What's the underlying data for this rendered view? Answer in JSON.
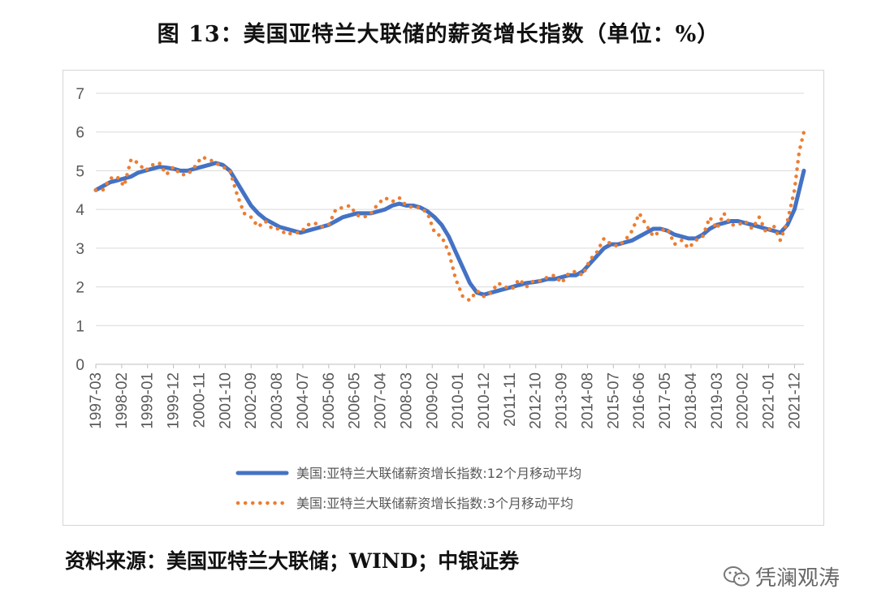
{
  "title": "图 13：美国亚特兰大联储的薪资增长指数（单位：%）",
  "source": "资料来源：美国亚特兰大联储；WIND；中银证券",
  "watermark": {
    "text": "凭澜观涛",
    "icon": "wechat-icon"
  },
  "chart_data": {
    "type": "line",
    "x_tick_labels": [
      "1997-03",
      "1998-02",
      "1999-01",
      "1999-12",
      "2000-11",
      "2001-10",
      "2002-09",
      "2003-08",
      "2004-07",
      "2005-06",
      "2006-05",
      "2007-04",
      "2008-03",
      "2009-02",
      "2010-01",
      "2010-12",
      "2011-11",
      "2012-10",
      "2013-09",
      "2014-08",
      "2015-07",
      "2016-06",
      "2017-05",
      "2018-04",
      "2019-03",
      "2020-02",
      "2021-01",
      "2021-12"
    ],
    "x_start": "1997-03",
    "x_end": "2022-04",
    "ylim": [
      0,
      7
    ],
    "y_ticks": [
      0,
      1,
      2,
      3,
      4,
      5,
      6,
      7
    ],
    "grid": "horizontal",
    "legend_position": "bottom",
    "series": [
      {
        "name": "美国:亚特兰大联储薪资增长指数:12个月移动平均",
        "style": "solid",
        "color": "#4472C4",
        "points": [
          [
            "1997-03",
            4.5
          ],
          [
            "1997-06",
            4.6
          ],
          [
            "1997-09",
            4.7
          ],
          [
            "1997-12",
            4.75
          ],
          [
            "1998-03",
            4.8
          ],
          [
            "1998-06",
            4.85
          ],
          [
            "1998-09",
            4.95
          ],
          [
            "1998-12",
            5.0
          ],
          [
            "1999-03",
            5.05
          ],
          [
            "1999-06",
            5.1
          ],
          [
            "1999-09",
            5.08
          ],
          [
            "1999-12",
            5.05
          ],
          [
            "2000-03",
            5.0
          ],
          [
            "2000-06",
            5.0
          ],
          [
            "2000-09",
            5.05
          ],
          [
            "2000-12",
            5.1
          ],
          [
            "2001-03",
            5.15
          ],
          [
            "2001-06",
            5.2
          ],
          [
            "2001-09",
            5.15
          ],
          [
            "2001-12",
            5.0
          ],
          [
            "2002-03",
            4.7
          ],
          [
            "2002-06",
            4.4
          ],
          [
            "2002-09",
            4.1
          ],
          [
            "2002-12",
            3.9
          ],
          [
            "2003-03",
            3.75
          ],
          [
            "2003-06",
            3.65
          ],
          [
            "2003-09",
            3.55
          ],
          [
            "2003-12",
            3.5
          ],
          [
            "2004-03",
            3.45
          ],
          [
            "2004-06",
            3.4
          ],
          [
            "2004-09",
            3.45
          ],
          [
            "2004-12",
            3.5
          ],
          [
            "2005-03",
            3.55
          ],
          [
            "2005-06",
            3.6
          ],
          [
            "2005-09",
            3.7
          ],
          [
            "2005-12",
            3.8
          ],
          [
            "2006-03",
            3.85
          ],
          [
            "2006-06",
            3.9
          ],
          [
            "2006-09",
            3.9
          ],
          [
            "2006-12",
            3.9
          ],
          [
            "2007-03",
            3.95
          ],
          [
            "2007-06",
            4.0
          ],
          [
            "2007-09",
            4.1
          ],
          [
            "2007-12",
            4.15
          ],
          [
            "2008-03",
            4.1
          ],
          [
            "2008-06",
            4.1
          ],
          [
            "2008-09",
            4.05
          ],
          [
            "2008-12",
            3.95
          ],
          [
            "2009-03",
            3.8
          ],
          [
            "2009-06",
            3.6
          ],
          [
            "2009-09",
            3.3
          ],
          [
            "2009-12",
            2.9
          ],
          [
            "2010-03",
            2.5
          ],
          [
            "2010-06",
            2.1
          ],
          [
            "2010-09",
            1.85
          ],
          [
            "2010-12",
            1.8
          ],
          [
            "2011-03",
            1.85
          ],
          [
            "2011-06",
            1.9
          ],
          [
            "2011-09",
            1.95
          ],
          [
            "2011-12",
            2.0
          ],
          [
            "2012-03",
            2.05
          ],
          [
            "2012-06",
            2.1
          ],
          [
            "2012-09",
            2.12
          ],
          [
            "2012-12",
            2.15
          ],
          [
            "2013-03",
            2.2
          ],
          [
            "2013-06",
            2.2
          ],
          [
            "2013-09",
            2.25
          ],
          [
            "2013-12",
            2.3
          ],
          [
            "2014-03",
            2.3
          ],
          [
            "2014-06",
            2.4
          ],
          [
            "2014-09",
            2.6
          ],
          [
            "2014-12",
            2.8
          ],
          [
            "2015-03",
            3.0
          ],
          [
            "2015-06",
            3.1
          ],
          [
            "2015-09",
            3.1
          ],
          [
            "2015-12",
            3.15
          ],
          [
            "2016-03",
            3.2
          ],
          [
            "2016-06",
            3.3
          ],
          [
            "2016-09",
            3.4
          ],
          [
            "2016-12",
            3.5
          ],
          [
            "2017-03",
            3.5
          ],
          [
            "2017-06",
            3.45
          ],
          [
            "2017-09",
            3.35
          ],
          [
            "2017-12",
            3.3
          ],
          [
            "2018-03",
            3.25
          ],
          [
            "2018-06",
            3.25
          ],
          [
            "2018-09",
            3.35
          ],
          [
            "2018-12",
            3.5
          ],
          [
            "2019-03",
            3.6
          ],
          [
            "2019-06",
            3.65
          ],
          [
            "2019-09",
            3.7
          ],
          [
            "2019-12",
            3.7
          ],
          [
            "2020-03",
            3.65
          ],
          [
            "2020-06",
            3.6
          ],
          [
            "2020-09",
            3.55
          ],
          [
            "2020-12",
            3.5
          ],
          [
            "2021-03",
            3.45
          ],
          [
            "2021-06",
            3.4
          ],
          [
            "2021-09",
            3.6
          ],
          [
            "2021-12",
            4.0
          ],
          [
            "2022-02",
            4.5
          ],
          [
            "2022-04",
            5.0
          ]
        ]
      },
      {
        "name": "美国:亚特兰大联储薪资增长指数:3个月移动平均",
        "style": "dotted",
        "color": "#ED7D31",
        "points": [
          [
            "1997-03",
            4.5
          ],
          [
            "1997-06",
            4.5
          ],
          [
            "1997-09",
            4.8
          ],
          [
            "1997-12",
            4.85
          ],
          [
            "1998-03",
            4.6
          ],
          [
            "1998-06",
            5.3
          ],
          [
            "1998-09",
            5.2
          ],
          [
            "1998-12",
            5.0
          ],
          [
            "1999-03",
            5.15
          ],
          [
            "1999-06",
            5.2
          ],
          [
            "1999-09",
            4.9
          ],
          [
            "1999-12",
            5.1
          ],
          [
            "2000-03",
            4.9
          ],
          [
            "2000-06",
            4.9
          ],
          [
            "2000-09",
            5.1
          ],
          [
            "2000-12",
            5.35
          ],
          [
            "2001-03",
            5.3
          ],
          [
            "2001-06",
            5.2
          ],
          [
            "2001-09",
            5.1
          ],
          [
            "2001-12",
            5.0
          ],
          [
            "2002-03",
            4.4
          ],
          [
            "2002-06",
            3.9
          ],
          [
            "2002-09",
            3.8
          ],
          [
            "2002-12",
            3.55
          ],
          [
            "2003-03",
            3.7
          ],
          [
            "2003-06",
            3.5
          ],
          [
            "2003-09",
            3.5
          ],
          [
            "2003-12",
            3.35
          ],
          [
            "2004-03",
            3.4
          ],
          [
            "2004-06",
            3.4
          ],
          [
            "2004-09",
            3.6
          ],
          [
            "2004-12",
            3.65
          ],
          [
            "2005-03",
            3.55
          ],
          [
            "2005-06",
            3.6
          ],
          [
            "2005-09",
            4.0
          ],
          [
            "2005-12",
            4.05
          ],
          [
            "2006-03",
            4.1
          ],
          [
            "2006-06",
            3.85
          ],
          [
            "2006-09",
            3.8
          ],
          [
            "2006-12",
            3.9
          ],
          [
            "2007-03",
            4.15
          ],
          [
            "2007-06",
            4.3
          ],
          [
            "2007-09",
            4.2
          ],
          [
            "2007-12",
            4.3
          ],
          [
            "2008-03",
            4.1
          ],
          [
            "2008-06",
            4.05
          ],
          [
            "2008-09",
            4.05
          ],
          [
            "2008-12",
            3.9
          ],
          [
            "2009-03",
            3.4
          ],
          [
            "2009-06",
            3.3
          ],
          [
            "2009-09",
            2.9
          ],
          [
            "2009-12",
            2.2
          ],
          [
            "2010-03",
            1.75
          ],
          [
            "2010-06",
            1.65
          ],
          [
            "2010-09",
            1.9
          ],
          [
            "2010-12",
            1.75
          ],
          [
            "2011-03",
            1.85
          ],
          [
            "2011-06",
            2.1
          ],
          [
            "2011-09",
            2.0
          ],
          [
            "2011-12",
            1.95
          ],
          [
            "2012-03",
            2.2
          ],
          [
            "2012-06",
            2.0
          ],
          [
            "2012-09",
            2.15
          ],
          [
            "2012-12",
            2.15
          ],
          [
            "2013-03",
            2.25
          ],
          [
            "2013-06",
            2.3
          ],
          [
            "2013-09",
            2.1
          ],
          [
            "2013-12",
            2.35
          ],
          [
            "2014-03",
            2.4
          ],
          [
            "2014-06",
            2.3
          ],
          [
            "2014-09",
            2.7
          ],
          [
            "2014-12",
            2.9
          ],
          [
            "2015-03",
            3.25
          ],
          [
            "2015-06",
            3.1
          ],
          [
            "2015-09",
            3.05
          ],
          [
            "2015-12",
            3.2
          ],
          [
            "2016-03",
            3.45
          ],
          [
            "2016-06",
            3.9
          ],
          [
            "2016-09",
            3.6
          ],
          [
            "2016-12",
            3.3
          ],
          [
            "2017-03",
            3.45
          ],
          [
            "2017-06",
            3.5
          ],
          [
            "2017-09",
            3.1
          ],
          [
            "2017-12",
            3.2
          ],
          [
            "2018-03",
            3.0
          ],
          [
            "2018-06",
            3.2
          ],
          [
            "2018-09",
            3.3
          ],
          [
            "2018-12",
            3.8
          ],
          [
            "2019-03",
            3.5
          ],
          [
            "2019-06",
            3.9
          ],
          [
            "2019-09",
            3.6
          ],
          [
            "2019-12",
            3.6
          ],
          [
            "2020-03",
            3.7
          ],
          [
            "2020-06",
            3.5
          ],
          [
            "2020-09",
            3.8
          ],
          [
            "2020-12",
            3.4
          ],
          [
            "2021-03",
            3.6
          ],
          [
            "2021-06",
            3.2
          ],
          [
            "2021-09",
            3.7
          ],
          [
            "2021-12",
            4.5
          ],
          [
            "2022-02",
            5.5
          ],
          [
            "2022-04",
            6.0
          ]
        ]
      }
    ]
  }
}
